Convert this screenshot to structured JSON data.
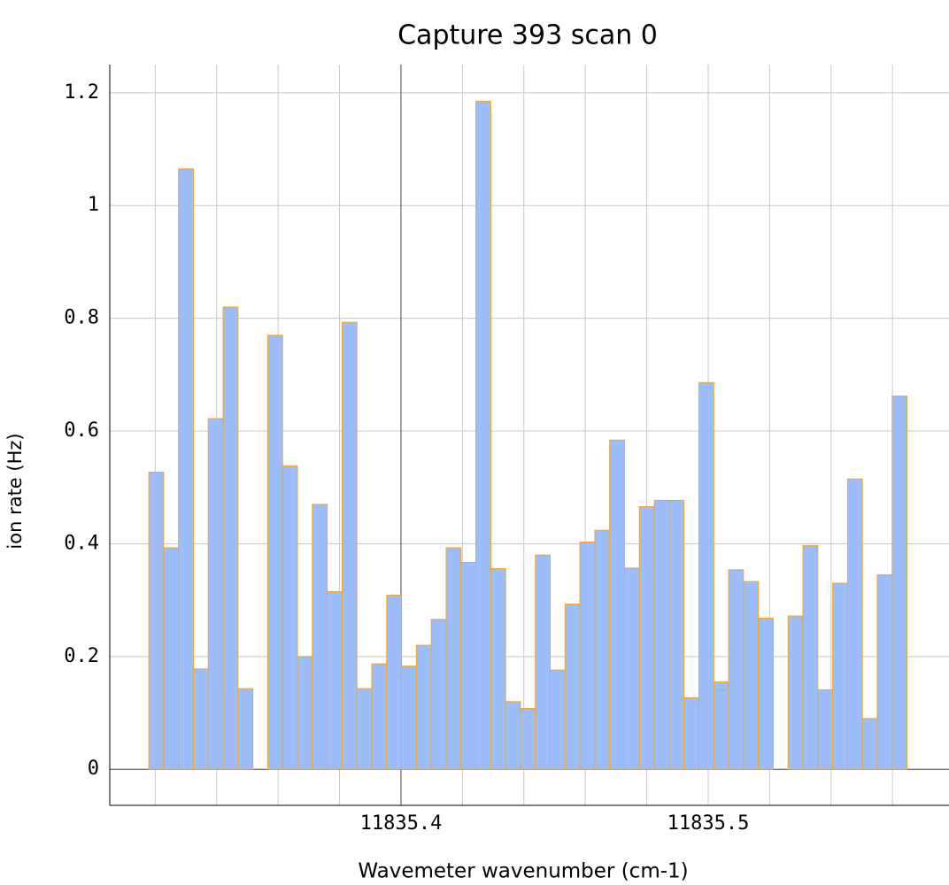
{
  "chart_data": {
    "type": "histogram",
    "title": "Capture 393 scan 0",
    "xlabel": "Wavemeter wavenumber (cm-1)",
    "ylabel": "ion rate (Hz)",
    "bins": [
      11835.3179,
      11835.32274,
      11835.32758,
      11835.33242,
      11835.33726,
      11835.3421,
      11835.34694,
      11835.35178,
      11835.35662,
      11835.36146,
      11835.3663,
      11835.37114,
      11835.37598,
      11835.38082,
      11835.38566,
      11835.3905,
      11835.39534,
      11835.40018,
      11835.40502,
      11835.40986,
      11835.4147,
      11835.41954,
      11835.42438,
      11835.42922,
      11835.43406,
      11835.4389,
      11835.44374,
      11835.44858,
      11835.45342,
      11835.45826,
      11835.4631,
      11835.46794,
      11835.47278,
      11835.47762,
      11835.48246,
      11835.4873,
      11835.49214,
      11835.49698,
      11835.50182,
      11835.50666,
      11835.5115,
      11835.51634,
      11835.52118,
      11835.52602,
      11835.53086,
      11835.5357,
      11835.54054,
      11835.54538,
      11835.55022,
      11835.55506,
      11835.5599,
      11835.56474
    ],
    "values": [
      0.527,
      0.393,
      1.065,
      0.178,
      0.622,
      0.82,
      0.143,
      0,
      0.77,
      0.538,
      0.2,
      0.47,
      0.315,
      0.793,
      0.143,
      0.187,
      0.309,
      0.183,
      0.22,
      0.266,
      0.393,
      0.367,
      1.185,
      0.356,
      0.12,
      0.108,
      0.38,
      0.176,
      0.293,
      0.403,
      0.424,
      0.584,
      0.357,
      0.466,
      0.477,
      0.477,
      0.127,
      0.686,
      0.155,
      0.354,
      0.333,
      0.268,
      0,
      0.272,
      0.397,
      0.141,
      0.33,
      0.515,
      0.09,
      0.345,
      0.662
    ],
    "color": "#9dbcfa",
    "edgecolor": "#f5a623",
    "xlim": [
      11835.3052,
      11835.5784
    ],
    "ylim": [
      -0.064,
      1.25
    ],
    "xticks": [
      11835.4,
      11835.5
    ],
    "xminorticks": [
      11835.32,
      11835.34,
      11835.36,
      11835.38,
      11835.42,
      11835.44,
      11835.46,
      11835.48,
      11835.52,
      11835.54,
      11835.56
    ],
    "yticks": [
      0,
      0.2,
      0.4,
      0.6,
      0.8,
      1,
      1.2
    ],
    "grid": true
  }
}
